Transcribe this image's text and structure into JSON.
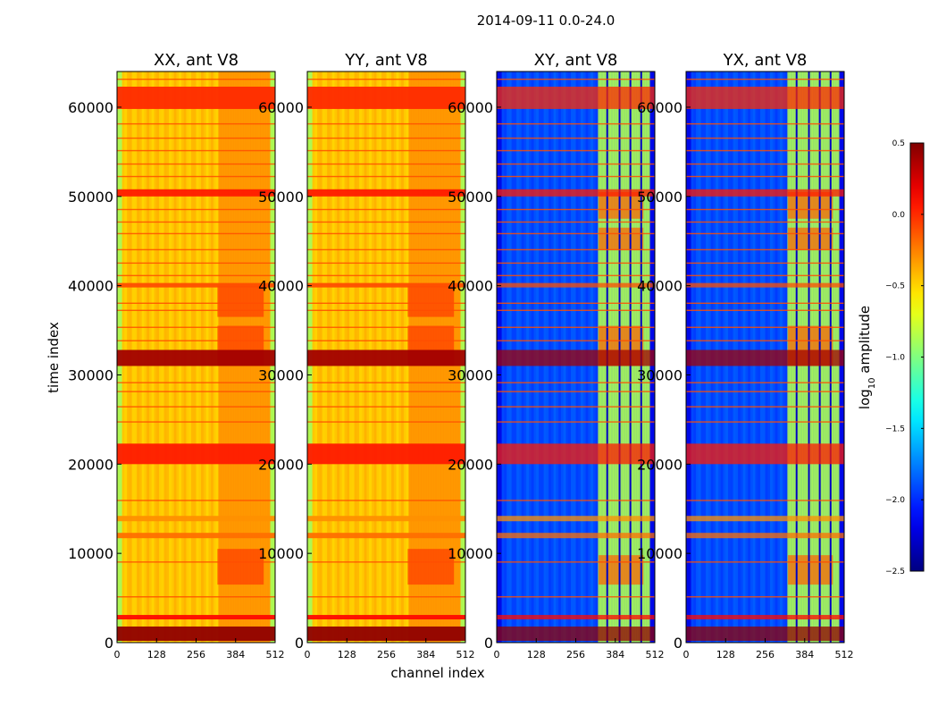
{
  "figure": {
    "suptitle": "2014-09-11 0.0-24.0"
  },
  "chart_data": {
    "type": "heatmap",
    "title": "2014-09-11 0.0-24.0",
    "xlabel": "channel index",
    "ylabel": "time index",
    "xlim": [
      0,
      512
    ],
    "ylim": [
      0,
      64000
    ],
    "xticks": [
      "0",
      "128",
      "256",
      "384",
      "512"
    ],
    "yticks": [
      "0",
      "10000",
      "20000",
      "30000",
      "40000",
      "50000",
      "60000"
    ],
    "xtick_values": [
      0,
      128,
      256,
      384,
      512
    ],
    "ytick_values": [
      0,
      10000,
      20000,
      30000,
      40000,
      50000,
      60000
    ],
    "panels": [
      {
        "title": "XX, ant V8",
        "kind": "auto"
      },
      {
        "title": "YY, ant V8",
        "kind": "auto"
      },
      {
        "title": "XY, ant V8",
        "kind": "cross"
      },
      {
        "title": "YX, ant V8",
        "kind": "cross"
      }
    ],
    "colorbar": {
      "label": "log",
      "label_sub": "10",
      "label_rest": " amplitude",
      "range": [
        -2.5,
        0.5
      ],
      "ticks": [
        0.5,
        0.0,
        -0.5,
        -1.0,
        -1.5,
        -2.0,
        -2.5
      ],
      "tick_labels": [
        "0.5",
        "0.0",
        "−0.5",
        "−1.0",
        "−1.5",
        "−2.0",
        "−2.5"
      ],
      "colormap": "jet"
    }
  }
}
